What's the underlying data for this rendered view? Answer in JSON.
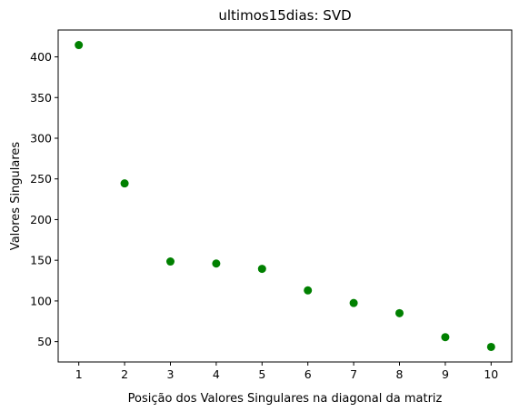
{
  "chart_data": {
    "type": "scatter",
    "title": "ultimos15dias: SVD",
    "xlabel": "Posição dos Valores Singulares na diagonal da matriz",
    "ylabel": "Valores Singulares",
    "x": [
      1,
      2,
      3,
      4,
      5,
      6,
      7,
      8,
      9,
      10
    ],
    "y": [
      414.5,
      244.5,
      148.5,
      146,
      139.5,
      113,
      97.5,
      85,
      55.5,
      43.5
    ],
    "xticks": [
      1,
      2,
      3,
      4,
      5,
      6,
      7,
      8,
      9,
      10
    ],
    "yticks": [
      50,
      100,
      150,
      200,
      250,
      300,
      350,
      400
    ],
    "xlim": [
      0.55,
      10.45
    ],
    "ylim": [
      25,
      433
    ],
    "grid": false,
    "marker_color": "#008000"
  }
}
